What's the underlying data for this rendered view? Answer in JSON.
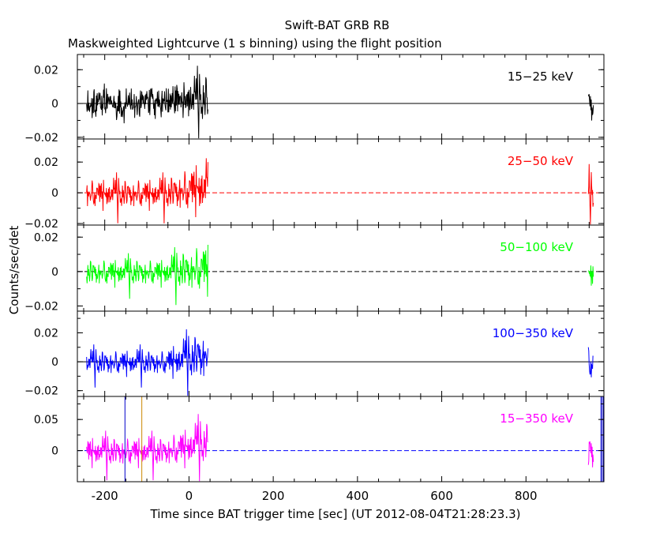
{
  "chart_data": {
    "type": "line",
    "title": "Swift-BAT GRB RB",
    "subtitle": "Maskweighted Lightcurve (1 s binning) using the flight position",
    "xlabel": "Time since BAT trigger time [sec] (UT 2012-08-04T21:28:23.3)",
    "ylabel": "Counts/sec/det",
    "xlim": [
      -265,
      985
    ],
    "x_ticks": [
      "-200",
      "0",
      "200",
      "400",
      "600",
      "800"
    ],
    "x_tick_values": [
      -200,
      0,
      200,
      400,
      600,
      800
    ],
    "data_segments": [
      [
        -243,
        45
      ],
      [
        948,
        960
      ]
    ],
    "grid": false,
    "markers": [
      {
        "x": -152,
        "color": "#0000cc"
      },
      {
        "x": -112,
        "color": "#cc8800"
      },
      {
        "x": 978,
        "color": "#0000cc"
      },
      {
        "x": 981,
        "color": "#0000cc"
      },
      {
        "x": 984,
        "color": "#0000cc"
      }
    ],
    "panels": [
      {
        "label": "15−25 keV",
        "color": "#000000",
        "ylim": [
          -0.021,
          0.029
        ],
        "y_ticks": [
          "0.02",
          "0",
          "−0.02"
        ],
        "y_tick_values": [
          0.02,
          0,
          -0.02
        ],
        "baseline_style": "solid",
        "baseline_color": "#000000",
        "noise_base": 0.0045,
        "noise_late": 0.0075,
        "trend_late": 0.004
      },
      {
        "label": "25−50 keV",
        "color": "#ff0000",
        "ylim": [
          -0.021,
          0.035
        ],
        "y_ticks": [
          "0.02",
          "0",
          "−0.02"
        ],
        "y_tick_values": [
          0.02,
          0,
          -0.02
        ],
        "baseline_style": "dashed",
        "baseline_color": "#ff0000",
        "noise_base": 0.005,
        "noise_late": 0.009,
        "trend_late": 0.005
      },
      {
        "label": "50−100 keV",
        "color": "#00ff00",
        "ylim": [
          -0.023,
          0.027
        ],
        "y_ticks": [
          "0.02",
          "0",
          "−0.02"
        ],
        "y_tick_values": [
          0.02,
          0,
          -0.02
        ],
        "baseline_style": "dashed",
        "baseline_color": "#000000",
        "noise_base": 0.004,
        "noise_late": 0.0075,
        "trend_late": 0.003
      },
      {
        "label": "100−350 keV",
        "color": "#0000ff",
        "ylim": [
          -0.024,
          0.035
        ],
        "y_ticks": [
          "0.02",
          "0",
          "−0.02"
        ],
        "y_tick_values": [
          0.02,
          0,
          -0.02
        ],
        "baseline_style": "solid",
        "baseline_color": "#000000",
        "noise_base": 0.0045,
        "noise_late": 0.009,
        "trend_late": 0.006
      },
      {
        "label": "15−350 keV",
        "color": "#ff00ff",
        "ylim": [
          -0.05,
          0.087
        ],
        "y_ticks": [
          "0.05",
          "0"
        ],
        "y_tick_values": [
          0.05,
          0
        ],
        "baseline_style": "dashed",
        "baseline_color": "#0000ff",
        "noise_base": 0.012,
        "noise_late": 0.018,
        "trend_late": 0.015
      }
    ]
  }
}
